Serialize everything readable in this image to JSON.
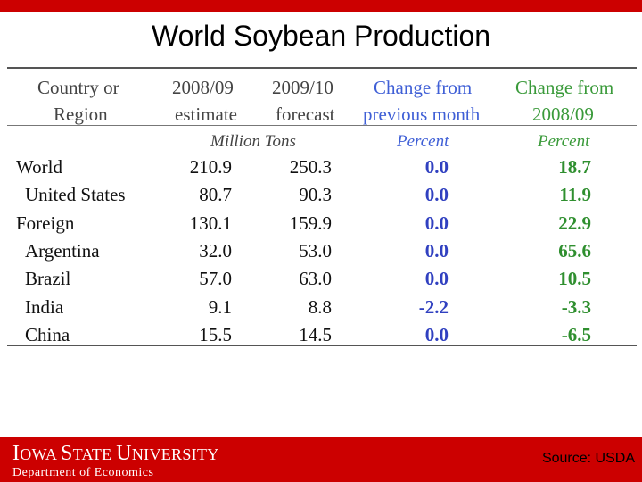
{
  "slide": {
    "title": "World Soybean Production"
  },
  "table": {
    "headers": {
      "region": [
        "Country or",
        "Region"
      ],
      "estimate": [
        "2008/09",
        "estimate"
      ],
      "forecast": [
        "2009/10",
        "forecast"
      ],
      "change_month": [
        "Change from",
        "previous month"
      ],
      "change_year": [
        "Change from",
        "2008/09"
      ]
    },
    "units": {
      "tons": "Million Tons",
      "month_pct": "Percent",
      "year_pct": "Percent"
    },
    "rows": [
      {
        "region": "World",
        "estimate": "210.9",
        "forecast": "250.3",
        "change_month": "0.0",
        "change_year": "18.7"
      },
      {
        "region": "United States",
        "estimate": "80.7",
        "forecast": "90.3",
        "change_month": "0.0",
        "change_year": "11.9"
      },
      {
        "region": "Foreign",
        "estimate": "130.1",
        "forecast": "159.9",
        "change_month": "0.0",
        "change_year": "22.9"
      },
      {
        "region": "Argentina",
        "estimate": "32.0",
        "forecast": "53.0",
        "change_month": "0.0",
        "change_year": "65.6"
      },
      {
        "region": "Brazil",
        "estimate": "57.0",
        "forecast": "63.0",
        "change_month": "0.0",
        "change_year": "10.5"
      },
      {
        "region": "India",
        "estimate": "9.1",
        "forecast": "8.8",
        "change_month": "-2.2",
        "change_year": "-3.3"
      },
      {
        "region": "China",
        "estimate": "15.5",
        "forecast": "14.5",
        "change_month": "0.0",
        "change_year": "-6.5"
      }
    ]
  },
  "footer": {
    "university_parts": [
      "I",
      "OWA ",
      "S",
      "TATE ",
      "U",
      "NIVERSITY"
    ],
    "department": "Department of Economics",
    "source": "Source: USDA"
  },
  "colors": {
    "brand_red": "#cc0000",
    "header_blue": "#3f5fd6",
    "header_green": "#3a9a3a"
  }
}
